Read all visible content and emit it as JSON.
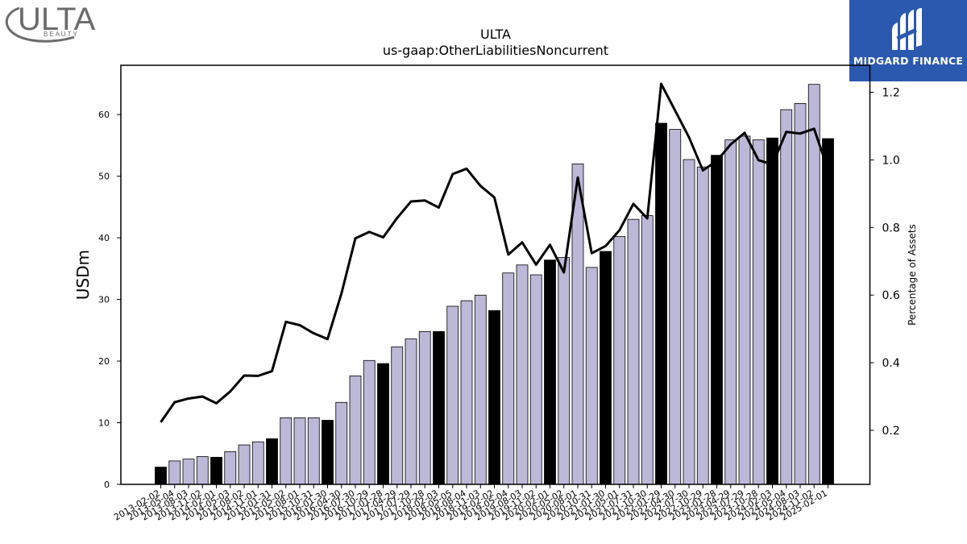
{
  "brand": {
    "ulta_name": "ULTA",
    "ulta_sub": "B E A U T Y",
    "midgard_name": "MIDGARD FINANCE"
  },
  "colors": {
    "bar_fill": "#bcb8d8",
    "bar_highlight": "#000000",
    "line": "#000000",
    "midgard_bg": "#2b59b0"
  },
  "chart_data": {
    "type": "bar",
    "title": "ULTA",
    "subtitle": "us-gaap:OtherLiabilitiesNoncurrent",
    "ylabel": "USDm",
    "y2label": "Percentage of Assets",
    "ylim": [
      0,
      68
    ],
    "y2lim": [
      0.04,
      1.28
    ],
    "yticks": [
      0,
      10,
      20,
      30,
      40,
      50,
      60
    ],
    "y2ticks": [
      0.2,
      0.4,
      0.6,
      0.8,
      1.0,
      1.2
    ],
    "grid": false,
    "categories": [
      "2013-02-02",
      "2013-05-04",
      "2013-08-03",
      "2013-11-02",
      "2014-02-01",
      "2014-05-03",
      "2014-08-02",
      "2014-11-01",
      "2015-01-31",
      "2015-05-02",
      "2015-08-01",
      "2015-10-31",
      "2016-01-30",
      "2016-04-30",
      "2016-07-30",
      "2016-10-29",
      "2017-01-28",
      "2017-04-29",
      "2017-07-29",
      "2017-10-28",
      "2018-02-03",
      "2018-05-05",
      "2018-08-04",
      "2018-11-03",
      "2019-02-02",
      "2019-05-04",
      "2019-08-03",
      "2019-11-02",
      "2020-02-01",
      "2020-05-02",
      "2020-08-01",
      "2020-10-31",
      "2021-01-30",
      "2021-05-01",
      "2021-07-31",
      "2021-10-30",
      "2022-01-29",
      "2022-04-30",
      "2022-07-30",
      "2022-10-29",
      "2023-01-28",
      "2023-04-29",
      "2023-07-29",
      "2023-10-28",
      "2024-02-03",
      "2024-05-04",
      "2024-08-03",
      "2024-11-02",
      "2025-02-01"
    ],
    "series": [
      {
        "type": "bar",
        "values": [
          2.8,
          3.8,
          4.1,
          4.5,
          4.4,
          5.3,
          6.4,
          6.9,
          7.4,
          10.8,
          10.8,
          10.8,
          10.4,
          13.3,
          17.6,
          20.1,
          19.6,
          22.3,
          23.6,
          24.8,
          24.8,
          28.9,
          29.8,
          30.7,
          28.2,
          34.3,
          35.6,
          34.0,
          36.4,
          36.8,
          52.0,
          35.2,
          37.8,
          40.2,
          43.0,
          43.6,
          58.6,
          57.6,
          52.7,
          51.5,
          53.4,
          55.9,
          56.5,
          55.9,
          56.2,
          60.8,
          61.8,
          64.9,
          56.1
        ],
        "highlight": [
          true,
          false,
          false,
          false,
          true,
          false,
          false,
          false,
          true,
          false,
          false,
          false,
          true,
          false,
          false,
          false,
          true,
          false,
          false,
          false,
          true,
          false,
          false,
          false,
          true,
          false,
          false,
          false,
          true,
          false,
          false,
          false,
          true,
          false,
          false,
          false,
          true,
          false,
          false,
          false,
          true,
          false,
          false,
          false,
          true,
          false,
          false,
          false,
          true
        ]
      },
      {
        "type": "line",
        "axis": "right",
        "values": [
          0.224,
          0.283,
          0.294,
          0.3,
          0.28,
          0.315,
          0.362,
          0.361,
          0.375,
          0.521,
          0.511,
          0.487,
          0.47,
          0.605,
          0.768,
          0.787,
          0.771,
          0.828,
          0.877,
          0.88,
          0.859,
          0.958,
          0.974,
          0.923,
          0.889,
          0.72,
          0.756,
          0.69,
          0.749,
          0.667,
          0.948,
          0.724,
          0.745,
          0.792,
          0.87,
          0.827,
          1.225,
          1.146,
          1.067,
          0.969,
          0.997,
          1.046,
          1.08,
          0.999,
          0.987,
          1.083,
          1.078,
          1.092,
          0.972
        ]
      }
    ]
  }
}
